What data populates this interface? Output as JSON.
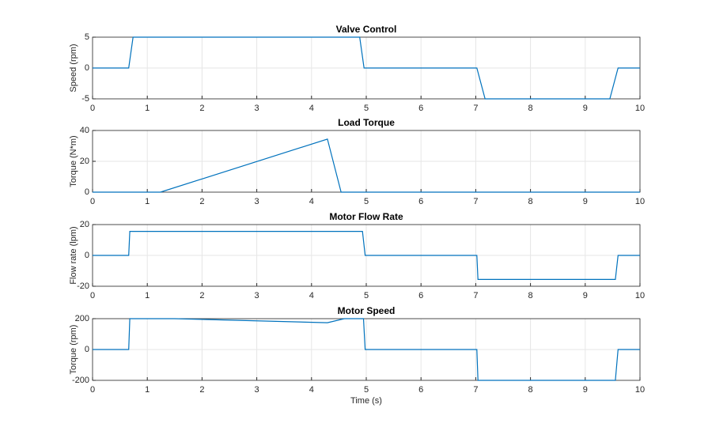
{
  "chart_data": [
    {
      "type": "line",
      "title": "Valve Control",
      "ylabel": "Speed (rpm)",
      "x": [
        0,
        0.66,
        0.74,
        4.88,
        4.96,
        7.02,
        7.17,
        9.45,
        9.6,
        10
      ],
      "values": [
        0,
        0,
        5,
        5,
        0,
        0,
        -5,
        -5,
        0,
        0
      ],
      "color": "#0072bd",
      "xlim": [
        0,
        10
      ],
      "xticks": [
        0,
        1,
        2,
        3,
        4,
        5,
        6,
        7,
        8,
        9,
        10
      ],
      "ylim": [
        -5,
        5
      ],
      "yticks": [
        -5,
        0,
        5
      ],
      "grid": true
    },
    {
      "type": "line",
      "title": "Load Torque",
      "ylabel": "Torque (N*m)",
      "x": [
        0,
        1.24,
        4.29,
        4.54,
        10
      ],
      "values": [
        0,
        0,
        34.4,
        0,
        0
      ],
      "color": "#0072bd",
      "xlim": [
        0,
        10
      ],
      "xticks": [
        0,
        1,
        2,
        3,
        4,
        5,
        6,
        7,
        8,
        9,
        10
      ],
      "ylim": [
        0,
        40
      ],
      "yticks": [
        0,
        20,
        40
      ],
      "grid": true
    },
    {
      "type": "line",
      "title": "Motor Flow Rate",
      "ylabel": "Flow rate (lpm)",
      "x": [
        0,
        0.66,
        0.68,
        4.93,
        4.98,
        7.02,
        7.04,
        9.55,
        9.6,
        10
      ],
      "values": [
        0,
        0,
        15.6,
        15.6,
        0,
        0,
        -15.6,
        -15.6,
        0,
        0
      ],
      "color": "#0072bd",
      "xlim": [
        0,
        10
      ],
      "xticks": [
        0,
        1,
        2,
        3,
        4,
        5,
        6,
        7,
        8,
        9,
        10
      ],
      "ylim": [
        -20,
        20
      ],
      "yticks": [
        -20,
        0,
        20
      ],
      "grid": true
    },
    {
      "type": "line",
      "title": "Motor Speed",
      "ylabel": "Torque (rpm)",
      "xlabel": "Time (s)",
      "x": [
        0,
        0.66,
        0.68,
        1.5,
        4.29,
        4.6,
        4.95,
        4.98,
        7.02,
        7.04,
        9.55,
        9.6,
        10
      ],
      "values": [
        0,
        0,
        200,
        200,
        174,
        200,
        200,
        0,
        0,
        -200,
        -200,
        0,
        0
      ],
      "color": "#0072bd",
      "xlim": [
        0,
        10
      ],
      "xticks": [
        0,
        1,
        2,
        3,
        4,
        5,
        6,
        7,
        8,
        9,
        10
      ],
      "ylim": [
        -200,
        200
      ],
      "yticks": [
        -200,
        0,
        200
      ],
      "grid": true
    }
  ]
}
